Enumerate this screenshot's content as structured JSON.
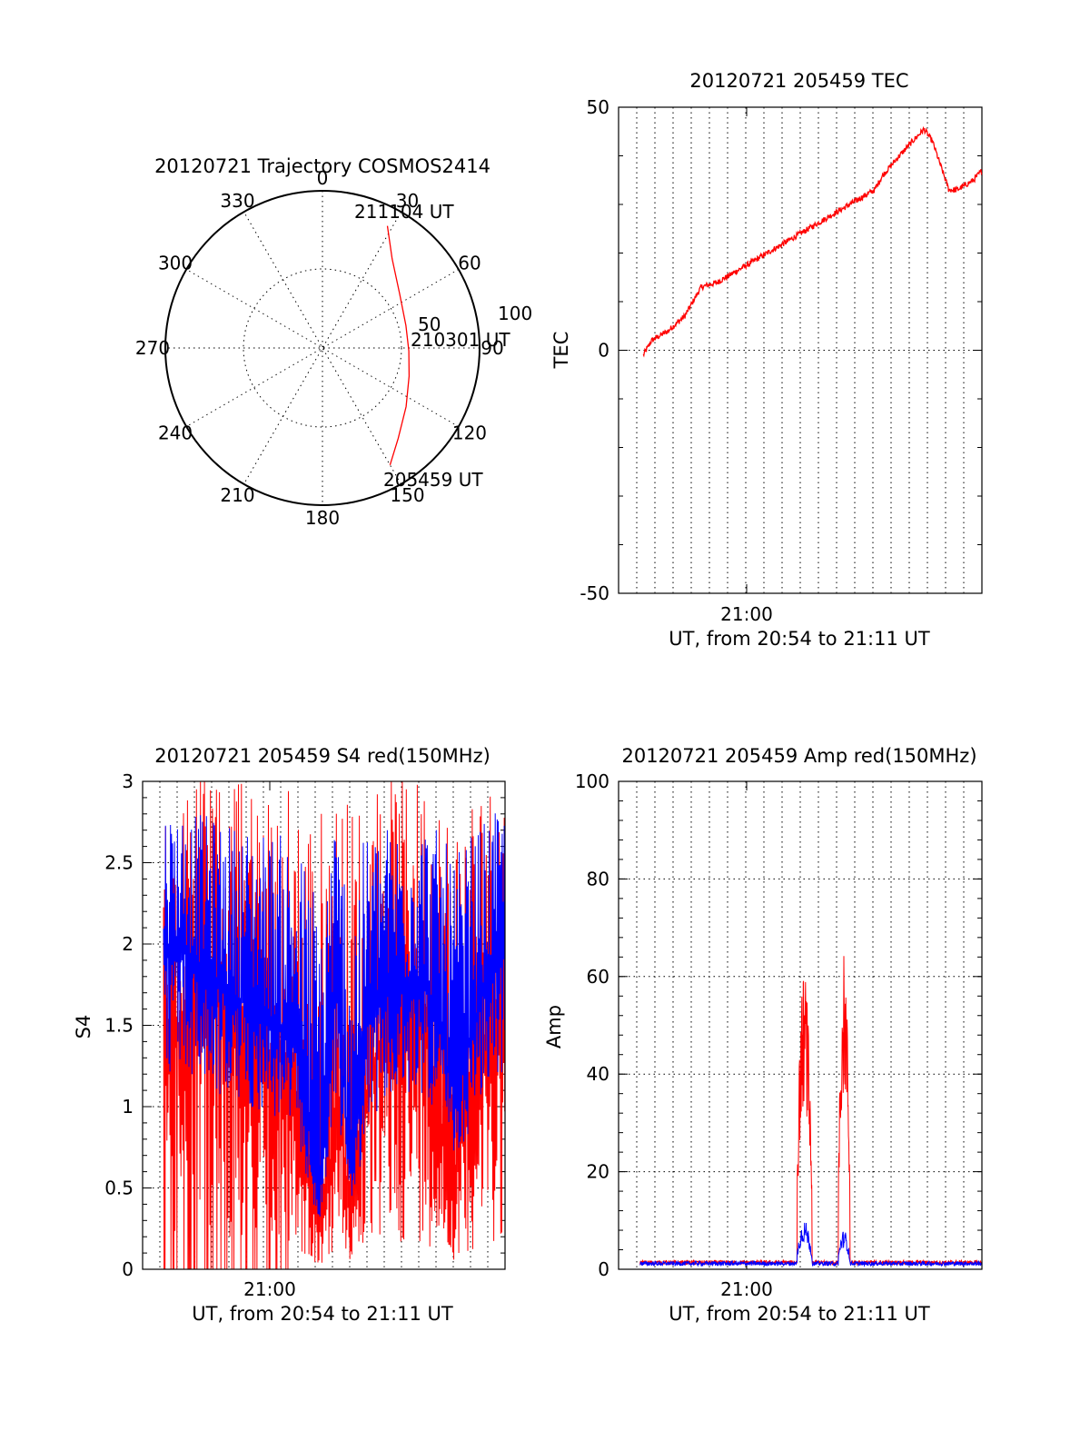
{
  "colors": {
    "red": "#ff0000",
    "blue": "#0000ff",
    "axis": "#000000"
  },
  "chart_data": [
    {
      "id": "polar",
      "type": "polar-trajectory",
      "title": "20120721 Trajectory COSMOS2414",
      "azimuth_labels": [
        "0",
        "30",
        "60",
        "90",
        "120",
        "150",
        "180",
        "210",
        "240",
        "270",
        "300",
        "330"
      ],
      "radial_labels": [
        "50",
        "100"
      ],
      "rmax": 100,
      "trajectory": [
        [
          28,
          88
        ],
        [
          38,
          72
        ],
        [
          55,
          60
        ],
        [
          75,
          55
        ],
        [
          92,
          55
        ],
        [
          108,
          58
        ],
        [
          125,
          65
        ],
        [
          140,
          75
        ],
        [
          150,
          86
        ]
      ],
      "annotations": [
        {
          "text": "211104 UT",
          "az": 28,
          "r": 88
        },
        {
          "text": "210301 UT",
          "az": 92,
          "r": 55
        },
        {
          "text": "205459 UT",
          "az": 150,
          "r": 86
        }
      ]
    },
    {
      "id": "tec",
      "type": "line",
      "title": "20120721 205459 TEC",
      "ylabel": "TEC",
      "xlabel": "UT, from 20:54 to 21:11 UT",
      "x_tick_label": "21:00",
      "ylim": [
        -50,
        50
      ],
      "yticks": [
        "-50",
        "0",
        "50"
      ],
      "xlim_min": [
        0,
        22
      ],
      "series": [
        {
          "name": "",
          "color": "red",
          "x": [
            1.5,
            2,
            3,
            4,
            4.5,
            5,
            6,
            7,
            8,
            8.5,
            9,
            10,
            11,
            12,
            13,
            14,
            15,
            15.5,
            16,
            17,
            17.8,
            18.5,
            19,
            19.5,
            20,
            20.5,
            21,
            21.5,
            22
          ],
          "y": [
            -1,
            2,
            4,
            7,
            10,
            13,
            14,
            16,
            18,
            19,
            20,
            22,
            24,
            26,
            28,
            30,
            32,
            33,
            36,
            40,
            43,
            45.5,
            43,
            38,
            33,
            33,
            34,
            35,
            37
          ]
        }
      ]
    },
    {
      "id": "s4",
      "type": "line",
      "title": "20120721 205459 S4 red(150MHz)",
      "ylabel": "S4",
      "xlabel": "UT, from 20:54 to 21:11 UT",
      "x_tick_label": "21:00",
      "ylim": [
        0,
        3
      ],
      "yticks": [
        "0",
        "0.5",
        "1",
        "1.5",
        "2",
        "2.5",
        "3"
      ],
      "xlim_min": [
        0,
        21
      ],
      "series": [
        {
          "name": "",
          "color": "red",
          "envelope_x": [
            1,
            2,
            4,
            6,
            7,
            8,
            9,
            9.5,
            10,
            10.5,
            11,
            11.5,
            12,
            12.5,
            13,
            14,
            15,
            16,
            17,
            17.5,
            18,
            18.5,
            19,
            20,
            21
          ],
          "envelope_y": [
            1.5,
            1.8,
            1.6,
            1.4,
            1.3,
            1.1,
            0.5,
            0.2,
            0.4,
            0.9,
            0.8,
            0.3,
            0.8,
            1.0,
            1.3,
            1.5,
            1.5,
            1.6,
            1.0,
            0.5,
            0.6,
            0.9,
            1.2,
            1.5,
            1.6
          ]
        },
        {
          "name": "",
          "color": "blue",
          "envelope_x": [
            1,
            2,
            4,
            6,
            7,
            8,
            9,
            9.5,
            10,
            10.5,
            11,
            11.5,
            12,
            12.5,
            13,
            14,
            15,
            16,
            17,
            17.5,
            18,
            18.5,
            19,
            20,
            21
          ],
          "envelope_y": [
            2.0,
            1.9,
            1.7,
            1.6,
            1.5,
            1.4,
            0.8,
            0.4,
            0.9,
            1.8,
            1.2,
            0.6,
            1.0,
            1.5,
            1.6,
            1.7,
            1.7,
            1.8,
            1.5,
            1.2,
            1.0,
            1.3,
            1.5,
            1.8,
            2.0
          ]
        }
      ]
    },
    {
      "id": "amp",
      "type": "line",
      "title": "20120721 205459 Amp red(150MHz)",
      "ylabel": "Amp",
      "xlabel": "UT, from 20:54 to 21:11 UT",
      "x_tick_label": "21:00",
      "ylim": [
        0,
        100
      ],
      "yticks": [
        "0",
        "20",
        "40",
        "60",
        "80",
        "100"
      ],
      "xlim_min": [
        0,
        22
      ],
      "series": [
        {
          "name": "",
          "color": "red",
          "bursts": [
            {
              "x0": 10.8,
              "x1": 11.7,
              "peak": 61
            },
            {
              "x0": 13.3,
              "x1": 14.0,
              "peak": 65
            }
          ],
          "baseline": 1.2
        },
        {
          "name": "",
          "color": "blue",
          "bursts": [
            {
              "x0": 10.8,
              "x1": 11.7,
              "peak": 10
            },
            {
              "x0": 13.3,
              "x1": 14.0,
              "peak": 8
            }
          ],
          "baseline": 1.0
        }
      ]
    }
  ]
}
